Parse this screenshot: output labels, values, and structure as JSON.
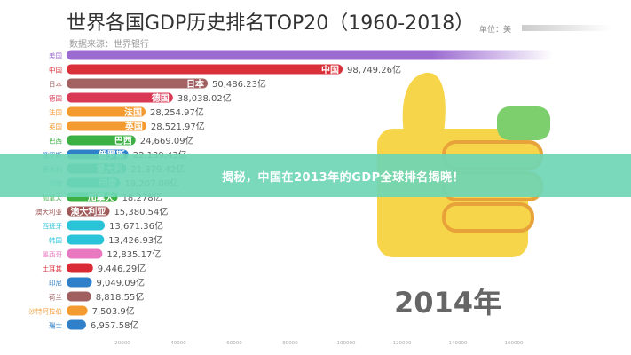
{
  "chart_data": {
    "type": "bar",
    "orientation": "horizontal",
    "title": "世界各国GDP历史排名TOP20（1960-2018）",
    "subtitle": "数据来源：世界银行",
    "unit_label": "单位：美",
    "year_label": "2014年",
    "value_suffix": "亿",
    "xlim": [
      0,
      170000
    ],
    "x_ticks": [
      20000,
      40000,
      60000,
      80000,
      100000,
      120000,
      140000,
      160000
    ],
    "grid": false,
    "categories": [
      "美国",
      "中国",
      "日本",
      "德国",
      "法国",
      "英国",
      "巴西",
      "俄罗斯",
      "意大利",
      "印度",
      "加拿大",
      "澳大利亚",
      "西班牙",
      "韩国",
      "墨西哥",
      "土耳其",
      "印尼",
      "荷兰",
      "沙特阿拉伯",
      "瑞士"
    ],
    "values": [
      174000,
      98749.26,
      50486.23,
      38038.02,
      28254.97,
      28521.97,
      24669.09,
      22139.43,
      21379.42,
      19207.06,
      18278,
      15380.54,
      13671.36,
      13426.93,
      12835.17,
      9446.29,
      9049.09,
      8818.55,
      7503.9,
      6957.58
    ],
    "value_labels": [
      "",
      "98,749.26亿",
      "50,486.23亿",
      "38,038.02亿",
      "28,254.97亿",
      "28,521.97亿",
      "24,669.09亿",
      "22,139.43亿",
      "21,379.42亿",
      "19,207.06亿",
      "18,278亿",
      "15,380.54亿",
      "13,671.36亿",
      "13,426.93亿",
      "12,835.17亿",
      "9,446.29亿",
      "9,049.09亿",
      "8,818.55亿",
      "7,503.9亿",
      "6,957.58亿"
    ],
    "colors": [
      "#9b6bd0",
      "#d9303a",
      "#a26262",
      "#d83a55",
      "#f39a30",
      "#f39a30",
      "#3cb043",
      "#2f80c8",
      "#3aa89a",
      "#3ab8b8",
      "#3cb043",
      "#a05858",
      "#2ac3d8",
      "#2ac3d8",
      "#e878c0",
      "#d92b35",
      "#2f80c8",
      "#a06060",
      "#f39a30",
      "#2f80c8"
    ]
  },
  "banner": {
    "text": "揭秘，中国在2013年的GDP全球排名揭晓！",
    "color": "#6ed6b4"
  },
  "thumb_icon": "thumbs-up-icon"
}
